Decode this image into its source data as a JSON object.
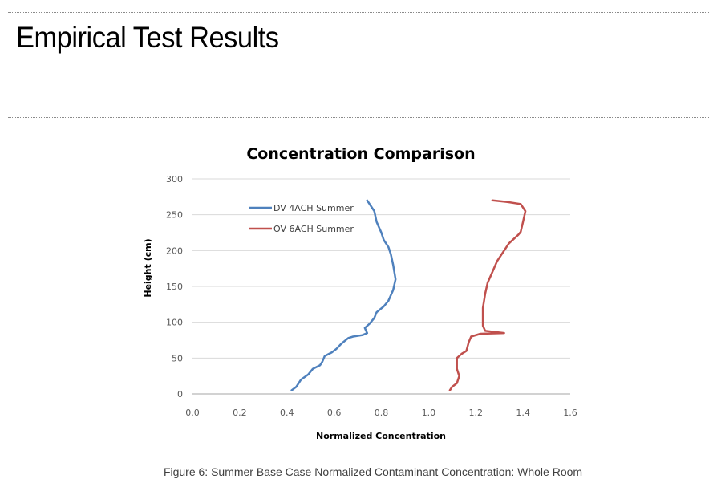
{
  "slide": {
    "title": "Empirical Test Results",
    "caption": "Figure 6: Summer Base Case Normalized Contaminant Concentration: Whole Room"
  },
  "chart_data": {
    "type": "line",
    "title": "Concentration Comparison",
    "xlabel": "Normalized Concentration",
    "ylabel": "Height (cm)",
    "xlim": [
      0,
      1.6
    ],
    "ylim": [
      0,
      300
    ],
    "x_ticks": [
      "0.0",
      "0.2",
      "0.4",
      "0.6",
      "0.8",
      "1.0",
      "1.2",
      "1.4",
      "1.6"
    ],
    "y_ticks": [
      "0",
      "50",
      "100",
      "150",
      "200",
      "250",
      "300"
    ],
    "grid": "horizontal",
    "legend": "top-left",
    "series": [
      {
        "name": "DV 4ACH Summer",
        "color": "#4f81bd",
        "points": [
          [
            0.42,
            5
          ],
          [
            0.44,
            10
          ],
          [
            0.46,
            20
          ],
          [
            0.49,
            27
          ],
          [
            0.51,
            35
          ],
          [
            0.54,
            40
          ],
          [
            0.55,
            45
          ],
          [
            0.56,
            53
          ],
          [
            0.59,
            58
          ],
          [
            0.61,
            63
          ],
          [
            0.63,
            70
          ],
          [
            0.66,
            78
          ],
          [
            0.68,
            80
          ],
          [
            0.72,
            82
          ],
          [
            0.74,
            85
          ],
          [
            0.73,
            92
          ],
          [
            0.75,
            98
          ],
          [
            0.77,
            106
          ],
          [
            0.78,
            114
          ],
          [
            0.81,
            122
          ],
          [
            0.83,
            130
          ],
          [
            0.85,
            145
          ],
          [
            0.86,
            160
          ],
          [
            0.85,
            180
          ],
          [
            0.84,
            195
          ],
          [
            0.83,
            205
          ],
          [
            0.81,
            215
          ],
          [
            0.8,
            225
          ],
          [
            0.78,
            240
          ],
          [
            0.77,
            255
          ],
          [
            0.74,
            270
          ]
        ]
      },
      {
        "name": "OV 6ACH Summer",
        "color": "#c0504d",
        "points": [
          [
            1.09,
            5
          ],
          [
            1.1,
            10
          ],
          [
            1.12,
            15
          ],
          [
            1.13,
            25
          ],
          [
            1.12,
            35
          ],
          [
            1.12,
            42
          ],
          [
            1.12,
            50
          ],
          [
            1.14,
            56
          ],
          [
            1.16,
            60
          ],
          [
            1.17,
            72
          ],
          [
            1.18,
            80
          ],
          [
            1.22,
            84
          ],
          [
            1.32,
            85
          ],
          [
            1.24,
            88
          ],
          [
            1.23,
            95
          ],
          [
            1.23,
            105
          ],
          [
            1.23,
            120
          ],
          [
            1.24,
            140
          ],
          [
            1.25,
            155
          ],
          [
            1.27,
            170
          ],
          [
            1.29,
            185
          ],
          [
            1.31,
            195
          ],
          [
            1.32,
            200
          ],
          [
            1.34,
            210
          ],
          [
            1.38,
            222
          ],
          [
            1.39,
            226
          ],
          [
            1.4,
            240
          ],
          [
            1.41,
            255
          ],
          [
            1.39,
            265
          ],
          [
            1.33,
            268
          ],
          [
            1.27,
            270
          ]
        ]
      }
    ]
  }
}
